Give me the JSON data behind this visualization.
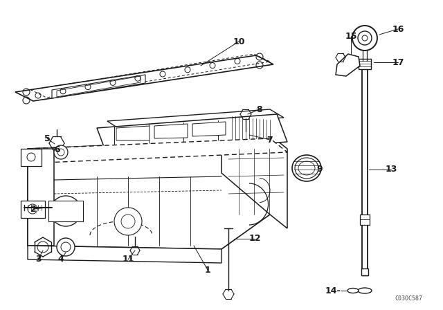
{
  "background_color": "#ffffff",
  "line_color": "#1a1a1a",
  "fig_width": 6.4,
  "fig_height": 4.48,
  "dpi": 100,
  "watermark": "C03OC587",
  "label_fontsize": 9,
  "line_width": 1.0
}
